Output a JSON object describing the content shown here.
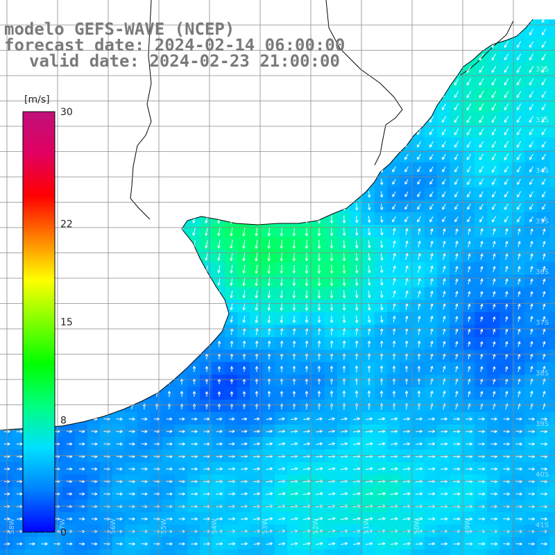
{
  "titles": {
    "line1": "modelo GEFS-WAVE (NCEP)",
    "line2": "forecast date: 2024-02-14 06:00:00",
    "line3": "valid date: 2024-02-23 21:00:00"
  },
  "colorbar": {
    "unit": "[m/s]",
    "ticks": [
      {
        "value": 30,
        "label": "30"
      },
      {
        "value": 22,
        "label": "22"
      },
      {
        "value": 15,
        "label": "15"
      },
      {
        "value": 8,
        "label": "8"
      },
      {
        "value": 0,
        "label": "0"
      }
    ],
    "min": 0,
    "max": 30,
    "colors": [
      "#0000ff",
      "#0080ff",
      "#00e0ff",
      "#00ff80",
      "#00ff00",
      "#80ff00",
      "#ffff00",
      "#ff8000",
      "#ff0000",
      "#e00060",
      "#c0107a"
    ]
  },
  "lat_labels": [
    "32S",
    "33S",
    "34S",
    "35S",
    "36S",
    "37S",
    "38S",
    "39S",
    "40S",
    "41S"
  ],
  "lon_labels": [
    "58W",
    "57W",
    "56W",
    "55W",
    "54W",
    "53W",
    "52W",
    "51W",
    "50W",
    "49W"
  ],
  "colors": {
    "land": "#ffffff",
    "coast": "#000000",
    "grid": "#888888",
    "arrow": "#ffffff"
  }
}
